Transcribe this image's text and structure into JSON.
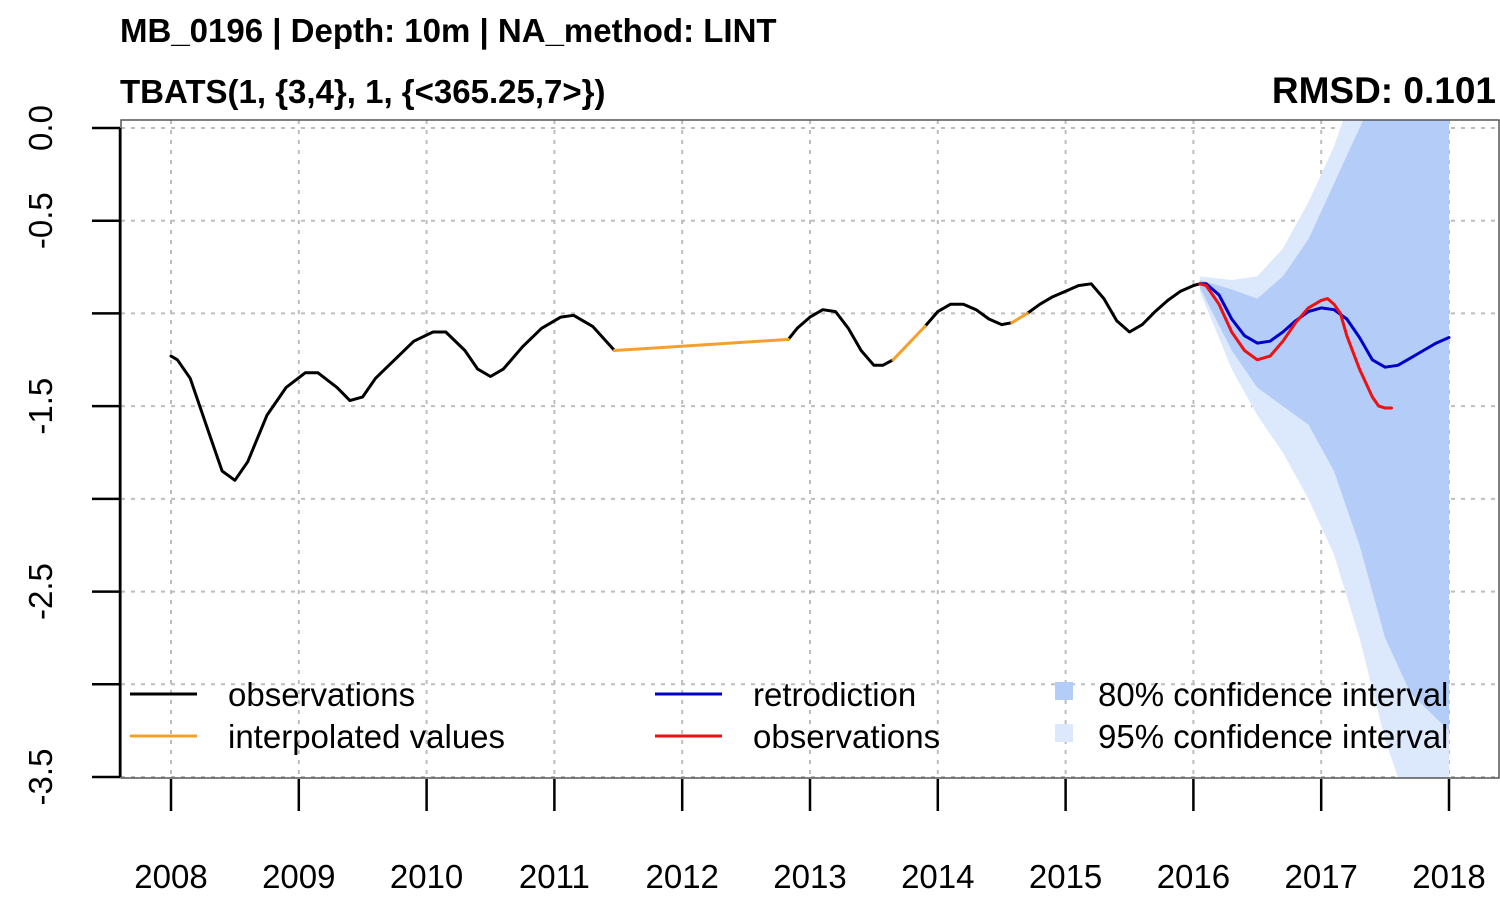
{
  "title": "MB_0196 | Depth: 10m | NA_method: LINT",
  "subtitle": "TBATS(1, {3,4}, 1, {<365.25,7>})",
  "metric_label": "RMSD: 0.101",
  "chart_data": {
    "type": "line",
    "title": "MB_0196 | Depth: 10m | NA_method: LINT",
    "subtitle": "TBATS(1, {3,4}, 1, {<365.25,7>})",
    "annotation": "RMSD: 0.101",
    "xlabel": "",
    "ylabel": "",
    "xlim": [
      2008,
      2018
    ],
    "ylim": [
      -3.5,
      0.0
    ],
    "x_ticks": [
      2008,
      2009,
      2010,
      2011,
      2012,
      2013,
      2014,
      2015,
      2016,
      2017,
      2018
    ],
    "x_tick_labels": [
      "2008",
      "2009",
      "2010",
      "2011",
      "2012",
      "2013",
      "2014",
      "2015",
      "2016",
      "2017",
      "2018"
    ],
    "y_ticks": [
      0.0,
      -0.5,
      -1.0,
      -1.5,
      -2.0,
      -2.5,
      -3.0,
      -3.5
    ],
    "y_tick_labels": [
      "0.0",
      "-0.5",
      "",
      "-1.5",
      "",
      "-2.5",
      "",
      "-3.5"
    ],
    "grid": true,
    "legend_position": "bottom",
    "series": [
      {
        "name": "observations",
        "color": "#000000",
        "role": "observed",
        "x": [
          2008.0,
          2008.05,
          2008.15,
          2008.3,
          2008.4,
          2008.5,
          2008.6,
          2008.75,
          2008.9,
          2009.05,
          2009.15,
          2009.3,
          2009.4,
          2009.5,
          2009.6,
          2009.75,
          2009.9,
          2010.05,
          2010.15,
          2010.3,
          2010.4,
          2010.5,
          2010.6,
          2010.75,
          2010.9,
          2011.05,
          2011.15,
          2011.3,
          2011.47
        ],
        "y": [
          -1.23,
          -1.25,
          -1.35,
          -1.65,
          -1.85,
          -1.9,
          -1.8,
          -1.55,
          -1.4,
          -1.32,
          -1.32,
          -1.4,
          -1.47,
          -1.45,
          -1.35,
          -1.25,
          -1.15,
          -1.1,
          -1.1,
          -1.2,
          -1.3,
          -1.34,
          -1.3,
          -1.18,
          -1.08,
          -1.02,
          -1.01,
          -1.07,
          -1.2
        ]
      },
      {
        "name": "observations",
        "color": "#000000",
        "role": "observed",
        "x": [
          2012.83,
          2012.9,
          2013.0,
          2013.1,
          2013.2,
          2013.3,
          2013.4,
          2013.5,
          2013.57,
          2013.65
        ],
        "y": [
          -1.14,
          -1.08,
          -1.02,
          -0.98,
          -0.99,
          -1.08,
          -1.2,
          -1.28,
          -1.28,
          -1.25
        ]
      },
      {
        "name": "observations",
        "color": "#000000",
        "role": "observed",
        "x": [
          2013.9,
          2014.0,
          2014.1,
          2014.2,
          2014.3,
          2014.4,
          2014.5,
          2014.58
        ],
        "y": [
          -1.07,
          -0.99,
          -0.95,
          -0.95,
          -0.98,
          -1.03,
          -1.06,
          -1.05
        ]
      },
      {
        "name": "observations",
        "color": "#000000",
        "role": "observed",
        "x": [
          2014.7,
          2014.8,
          2014.9,
          2015.0,
          2015.1,
          2015.2,
          2015.3,
          2015.4,
          2015.5,
          2015.6,
          2015.7,
          2015.8,
          2015.9,
          2016.0,
          2016.05
        ],
        "y": [
          -1.0,
          -0.95,
          -0.91,
          -0.88,
          -0.85,
          -0.84,
          -0.92,
          -1.04,
          -1.1,
          -1.06,
          -0.99,
          -0.93,
          -0.88,
          -0.85,
          -0.84
        ]
      },
      {
        "name": "interpolated values",
        "color": "#f5a02a",
        "role": "interpolated",
        "x": [
          2011.47,
          2012.83
        ],
        "y": [
          -1.2,
          -1.14
        ]
      },
      {
        "name": "interpolated values",
        "color": "#f5a02a",
        "role": "interpolated",
        "x": [
          2013.65,
          2013.9
        ],
        "y": [
          -1.25,
          -1.07
        ]
      },
      {
        "name": "interpolated values",
        "color": "#f5a02a",
        "role": "interpolated",
        "x": [
          2014.58,
          2014.7
        ],
        "y": [
          -1.05,
          -1.0
        ]
      },
      {
        "name": "retrodiction",
        "color": "#0000cc",
        "role": "forecast",
        "x": [
          2016.05,
          2016.1,
          2016.2,
          2016.3,
          2016.4,
          2016.5,
          2016.6,
          2016.7,
          2016.8,
          2016.9,
          2017.0,
          2017.1,
          2017.2,
          2017.3,
          2017.4,
          2017.5,
          2017.6,
          2017.7,
          2017.8,
          2017.9,
          2018.0
        ],
        "y": [
          -0.84,
          -0.84,
          -0.9,
          -1.03,
          -1.12,
          -1.16,
          -1.15,
          -1.1,
          -1.04,
          -0.99,
          -0.97,
          -0.98,
          -1.03,
          -1.13,
          -1.25,
          -1.29,
          -1.28,
          -1.24,
          -1.2,
          -1.16,
          -1.13
        ]
      },
      {
        "name": "observations",
        "color": "#ee1111",
        "role": "validation",
        "x": [
          2016.05,
          2016.1,
          2016.2,
          2016.3,
          2016.4,
          2016.5,
          2016.6,
          2016.7,
          2016.8,
          2016.9,
          2017.0,
          2017.05,
          2017.1,
          2017.15,
          2017.2,
          2017.3,
          2017.4,
          2017.45,
          2017.5,
          2017.55
        ],
        "y": [
          -0.84,
          -0.85,
          -0.95,
          -1.1,
          -1.2,
          -1.25,
          -1.23,
          -1.15,
          -1.05,
          -0.97,
          -0.93,
          -0.92,
          -0.95,
          -1.0,
          -1.12,
          -1.3,
          -1.45,
          -1.5,
          -1.51,
          -1.51
        ]
      }
    ],
    "intervals": [
      {
        "name": "95% confidence interval",
        "color": "#dce8fc",
        "x": [
          2016.05,
          2016.3,
          2016.5,
          2016.7,
          2016.9,
          2017.1,
          2017.3,
          2017.5,
          2017.7,
          2018.0
        ],
        "upper": [
          -0.8,
          -0.82,
          -0.8,
          -0.65,
          -0.4,
          -0.1,
          0.3,
          0.6,
          0.9,
          1.2
        ],
        "lower": [
          -0.88,
          -1.3,
          -1.55,
          -1.75,
          -2.0,
          -2.3,
          -2.75,
          -3.3,
          -3.7,
          -4.3
        ]
      },
      {
        "name": "80% confidence interval",
        "color": "#b3cdf8",
        "x": [
          2016.05,
          2016.3,
          2016.5,
          2016.7,
          2016.9,
          2017.1,
          2017.3,
          2017.5,
          2017.7,
          2018.0
        ],
        "upper": [
          -0.82,
          -0.87,
          -0.92,
          -0.8,
          -0.6,
          -0.3,
          0.0,
          0.3,
          0.5,
          0.8
        ],
        "lower": [
          -0.86,
          -1.2,
          -1.4,
          -1.5,
          -1.6,
          -1.85,
          -2.25,
          -2.75,
          -3.05,
          -3.25
        ]
      }
    ],
    "legend": [
      {
        "label": "observations",
        "kind": "line",
        "color": "#000000"
      },
      {
        "label": "interpolated values",
        "kind": "line",
        "color": "#f5a02a"
      },
      {
        "label": "retrodiction",
        "kind": "line",
        "color": "#0000cc"
      },
      {
        "label": "observations",
        "kind": "line",
        "color": "#ee1111"
      },
      {
        "label": "80% confidence interval",
        "kind": "box",
        "color": "#b3cdf8"
      },
      {
        "label": "95% confidence interval",
        "kind": "box",
        "color": "#dce8fc"
      }
    ]
  }
}
